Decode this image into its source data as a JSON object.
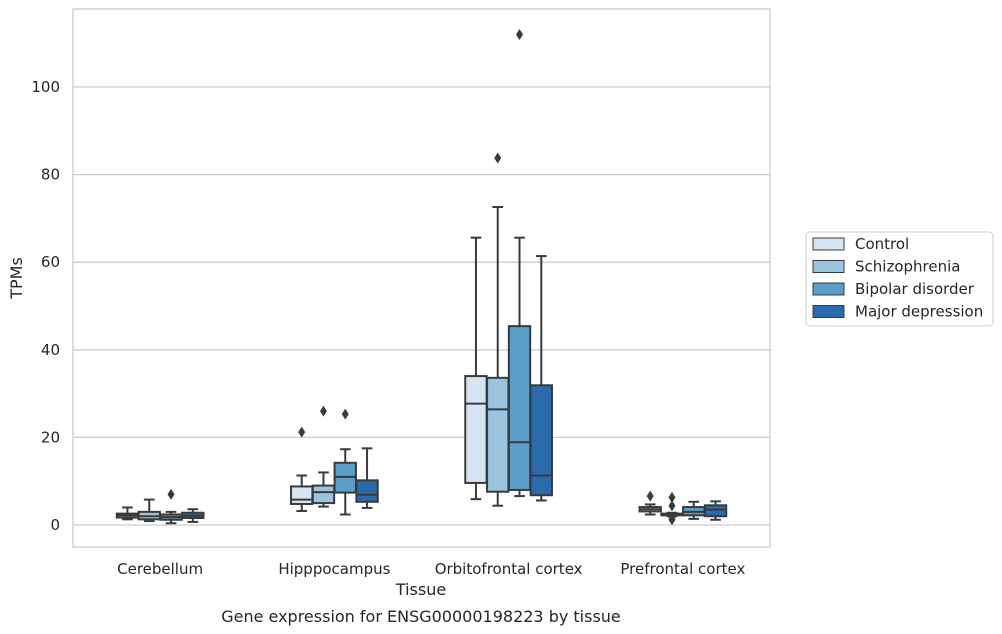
{
  "chart_data": {
    "type": "box",
    "title": "",
    "caption": "Gene expression for ENSG00000198223 by tissue",
    "xlabel": "Tissue",
    "ylabel": "TPMs",
    "ylim": [
      -5,
      117
    ],
    "yticks": [
      0,
      20,
      40,
      60,
      80,
      100
    ],
    "grid": "horizontal",
    "legend_position": "right",
    "categories": [
      "Cerebellum",
      "Hipppocampus",
      "Orbitofrontal cortex",
      "Prefrontal cortex"
    ],
    "series": [
      {
        "name": "Control",
        "color": "#d6e5f3",
        "boxes": [
          {
            "whislo": 1.3,
            "q1": 1.7,
            "med": 2.2,
            "q3": 2.6,
            "whishi": 4.0,
            "fliers": []
          },
          {
            "whislo": 3.2,
            "q1": 4.8,
            "med": 5.8,
            "q3": 8.8,
            "whishi": 11.3,
            "fliers": [
              21.2
            ]
          },
          {
            "whislo": 5.9,
            "q1": 9.6,
            "med": 27.7,
            "q3": 34.0,
            "whishi": 65.6,
            "fliers": []
          },
          {
            "whislo": 2.4,
            "q1": 3.1,
            "med": 3.6,
            "q3": 4.1,
            "whishi": 4.7,
            "fliers": [
              6.6
            ]
          }
        ]
      },
      {
        "name": "Schizophrenia",
        "color": "#9bc4df",
        "boxes": [
          {
            "whislo": 0.9,
            "q1": 1.3,
            "med": 2.0,
            "q3": 3.0,
            "whishi": 5.8,
            "fliers": []
          },
          {
            "whislo": 4.2,
            "q1": 5.0,
            "med": 7.5,
            "q3": 9.0,
            "whishi": 12.0,
            "fliers": [
              26.0
            ]
          },
          {
            "whislo": 4.4,
            "q1": 7.6,
            "med": 26.4,
            "q3": 33.6,
            "whishi": 72.6,
            "fliers": [
              83.8
            ]
          },
          {
            "whislo": 2.0,
            "q1": 2.2,
            "med": 2.4,
            "q3": 2.6,
            "whishi": 2.8,
            "fliers": [
              6.3,
              4.4,
              1.7,
              1.2
            ]
          }
        ]
      },
      {
        "name": "Bipolar disorder",
        "color": "#5a9ec9",
        "boxes": [
          {
            "whislo": 0.4,
            "q1": 1.2,
            "med": 1.8,
            "q3": 2.4,
            "whishi": 3.0,
            "fliers": [
              7.0
            ]
          },
          {
            "whislo": 2.4,
            "q1": 7.4,
            "med": 11.0,
            "q3": 14.2,
            "whishi": 17.3,
            "fliers": [
              25.3
            ]
          },
          {
            "whislo": 6.6,
            "q1": 8.0,
            "med": 18.9,
            "q3": 45.4,
            "whishi": 65.6,
            "fliers": [
              112.0
            ]
          },
          {
            "whislo": 1.4,
            "q1": 2.2,
            "med": 3.0,
            "q3": 4.1,
            "whishi": 5.3,
            "fliers": []
          }
        ]
      },
      {
        "name": "Major depression",
        "color": "#2a6bad",
        "boxes": [
          {
            "whislo": 0.7,
            "q1": 1.6,
            "med": 2.1,
            "q3": 2.8,
            "whishi": 3.6,
            "fliers": []
          },
          {
            "whislo": 3.9,
            "q1": 5.3,
            "med": 6.9,
            "q3": 10.2,
            "whishi": 17.5,
            "fliers": []
          },
          {
            "whislo": 5.6,
            "q1": 6.8,
            "med": 11.3,
            "q3": 31.9,
            "whishi": 61.4,
            "fliers": []
          },
          {
            "whislo": 1.2,
            "q1": 2.0,
            "med": 3.5,
            "q3": 4.5,
            "whishi": 5.4,
            "fliers": []
          }
        ]
      }
    ]
  }
}
